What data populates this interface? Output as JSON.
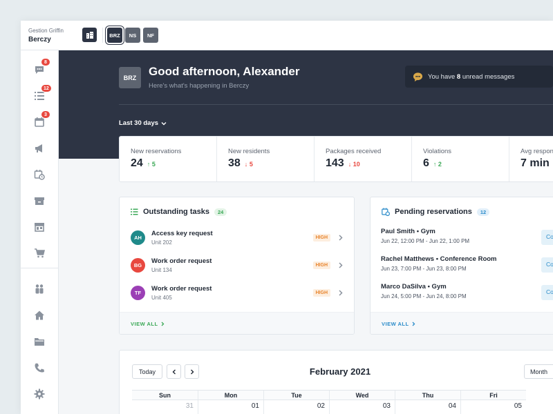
{
  "org": {
    "label": "Gestion Griffin",
    "name": "Berczy"
  },
  "buildings": [
    "BRZ",
    "NS",
    "NF"
  ],
  "sidebar": {
    "badges": {
      "messages": "8",
      "tasks": "12",
      "calendar": "3"
    }
  },
  "hero": {
    "avatar": "BRZ",
    "greeting": "Good afternoon, Alexander",
    "subtitle": "Here's what's happening in Berczy",
    "messages": {
      "prefix": "You have",
      "count": "8",
      "suffix": "unread messages"
    },
    "period": "Last 30 days"
  },
  "stats": [
    {
      "label": "New reservations",
      "value": "24",
      "delta": "5",
      "direction": "up"
    },
    {
      "label": "New residents",
      "value": "38",
      "delta": "5",
      "direction": "down"
    },
    {
      "label": "Packages received",
      "value": "143",
      "delta": "10",
      "direction": "down"
    },
    {
      "label": "Violations",
      "value": "6",
      "delta": "2",
      "direction": "up"
    },
    {
      "label": "Avg respon",
      "value": "7 min",
      "delta": "",
      "direction": ""
    }
  ],
  "tasks": {
    "title": "Outstanding tasks",
    "count": "24",
    "items": [
      {
        "initials": "AH",
        "color": "#1f8a8a",
        "title": "Access key request",
        "unit": "Unit 202",
        "priority": "HIGH"
      },
      {
        "initials": "BG",
        "color": "#e8483f",
        "title": "Work order request",
        "unit": "Unit 134",
        "priority": "HIGH"
      },
      {
        "initials": "TF",
        "color": "#9b3fb5",
        "title": "Work order request",
        "unit": "Unit 405",
        "priority": "HIGH"
      }
    ],
    "view_all": "VIEW ALL"
  },
  "reservations": {
    "title": "Pending reservations",
    "count": "12",
    "items": [
      {
        "title": "Paul Smith • Gym",
        "time": "Jun 22, 12:00 PM - Jun 22, 1:00 PM",
        "action": "Co"
      },
      {
        "title": "Rachel Matthews • Conference Room",
        "time": "Jun 23, 7:00 PM - Jun 23, 8:00 PM",
        "action": "Co"
      },
      {
        "title": "Marco DaSilva • Gym",
        "time": "Jun 24, 5:00 PM - Jun 24, 8:00 PM",
        "action": "Co"
      }
    ],
    "view_all": "VIEW ALL"
  },
  "calendar": {
    "today": "Today",
    "month": "February 2021",
    "view": "Month",
    "weekdays": [
      "Sun",
      "Mon",
      "Tue",
      "Wed",
      "Thu",
      "Fri"
    ],
    "days": [
      "31",
      "01",
      "02",
      "03",
      "04",
      "05"
    ]
  },
  "colors": {
    "dark": "#2d3444",
    "accent_green": "#3aa856",
    "accent_blue": "#2a8bc9",
    "badge_red": "#e8483f"
  }
}
